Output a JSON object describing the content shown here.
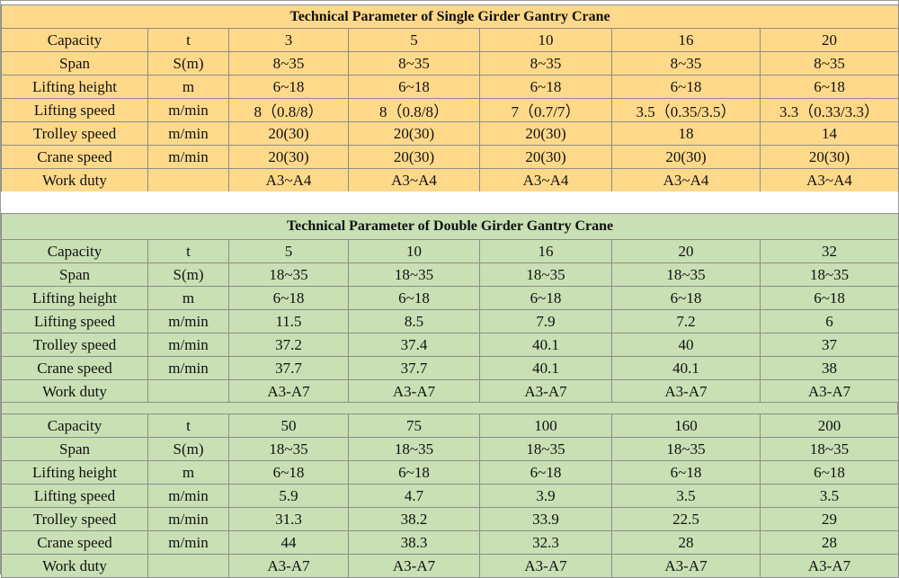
{
  "single": {
    "title": "Technical Parameter of Single Girder Gantry Crane",
    "rows": [
      [
        "Capacity",
        "t",
        "3",
        "5",
        "10",
        "16",
        "20"
      ],
      [
        "Span",
        "S(m)",
        "8~35",
        "8~35",
        "8~35",
        "8~35",
        "8~35"
      ],
      [
        "Lifting height",
        "m",
        "6~18",
        "6~18",
        "6~18",
        "6~18",
        "6~18"
      ],
      [
        "Lifting speed",
        "m/min",
        "8（0.8/8）",
        "8（0.8/8）",
        "7（0.7/7）",
        "3.5（0.35/3.5）",
        "3.3（0.33/3.3）"
      ],
      [
        "Trolley speed",
        "m/min",
        "20(30)",
        "20(30)",
        "20(30)",
        "18",
        "14"
      ],
      [
        "Crane speed",
        "m/min",
        "20(30)",
        "20(30)",
        "20(30)",
        "20(30)",
        "20(30)"
      ],
      [
        "Work duty",
        "",
        "A3~A4",
        "A3~A4",
        "A3~A4",
        "A3~A4",
        "A3~A4"
      ]
    ]
  },
  "double": {
    "title": "Technical Parameter of Double Girder Gantry Crane",
    "groups": [
      [
        [
          "Capacity",
          "t",
          "5",
          "10",
          "16",
          "20",
          "32"
        ],
        [
          "Span",
          "S(m)",
          "18~35",
          "18~35",
          "18~35",
          "18~35",
          "18~35"
        ],
        [
          "Lifting height",
          "m",
          "6~18",
          "6~18",
          "6~18",
          "6~18",
          "6~18"
        ],
        [
          "Lifting speed",
          "m/min",
          "11.5",
          "8.5",
          "7.9",
          "7.2",
          "6"
        ],
        [
          "Trolley speed",
          "m/min",
          "37.2",
          "37.4",
          "40.1",
          "40",
          "37"
        ],
        [
          "Crane speed",
          "m/min",
          "37.7",
          "37.7",
          "40.1",
          "40.1",
          "38"
        ],
        [
          "Work duty",
          "",
          "A3-A7",
          "A3-A7",
          "A3-A7",
          "A3-A7",
          "A3-A7"
        ]
      ],
      [
        [
          "Capacity",
          "t",
          "50",
          "75",
          "100",
          "160",
          "200"
        ],
        [
          "Span",
          "S(m)",
          "18~35",
          "18~35",
          "18~35",
          "18~35",
          "18~35"
        ],
        [
          "Lifting height",
          "m",
          "6~18",
          "6~18",
          "6~18",
          "6~18",
          "6~18"
        ],
        [
          "Lifting speed",
          "m/min",
          "5.9",
          "4.7",
          "3.9",
          "3.5",
          "3.5"
        ],
        [
          "Trolley speed",
          "m/min",
          "31.3",
          "38.2",
          "33.9",
          "22.5",
          "29"
        ],
        [
          "Crane speed",
          "m/min",
          "44",
          "38.3",
          "32.3",
          "28",
          "28"
        ],
        [
          "Work duty",
          "",
          "A3-A7",
          "A3-A7",
          "A3-A7",
          "A3-A7",
          "A3-A7"
        ]
      ]
    ]
  }
}
